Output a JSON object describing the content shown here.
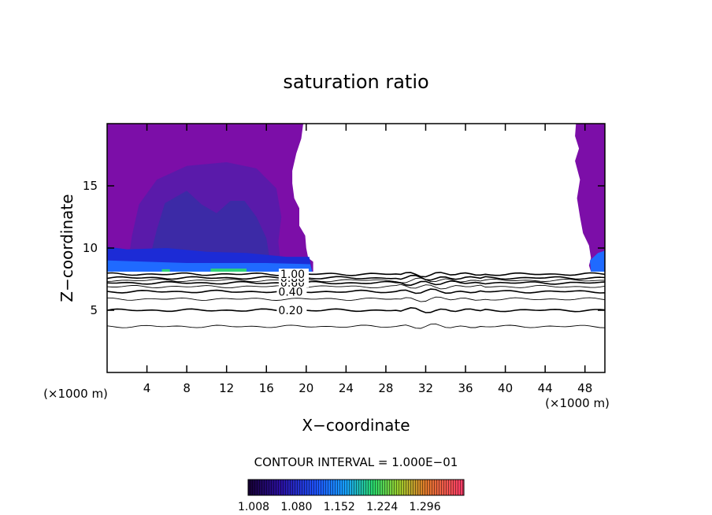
{
  "chart_data": {
    "type": "contour",
    "title": "saturation ratio",
    "xlabel": "X−coordinate",
    "ylabel": "Z−coordinate",
    "x_unit_left": "(×1000 m)",
    "x_unit_right": "(×1000 m)",
    "xlim": [
      0,
      50
    ],
    "ylim": [
      0,
      20
    ],
    "x_ticks": [
      4,
      8,
      12,
      16,
      20,
      24,
      28,
      32,
      36,
      40,
      44,
      48
    ],
    "y_ticks": [
      5,
      10,
      15
    ],
    "contour_interval_text": "CONTOUR INTERVAL = 1.000E−01",
    "colorbar_labels": [
      "1.008",
      "1.080",
      "1.152",
      "1.224",
      "1.296"
    ],
    "colorbar_range": [
      1.008,
      1.32
    ],
    "contour_lines": [
      {
        "level": 0.2,
        "label": "0.20",
        "z": 5.0,
        "bold": true
      },
      {
        "level": 0.3,
        "label": "",
        "z": 5.9,
        "bold": false
      },
      {
        "level": 0.4,
        "label": "0.40",
        "z": 6.5,
        "bold": true
      },
      {
        "level": 0.5,
        "label": "",
        "z": 6.9,
        "bold": false
      },
      {
        "level": 0.6,
        "label": "0.60",
        "z": 7.2,
        "bold": true
      },
      {
        "level": 0.7,
        "label": "",
        "z": 7.4,
        "bold": false
      },
      {
        "level": 0.8,
        "label": "0.80",
        "z": 7.6,
        "bold": true
      },
      {
        "level": 1.0,
        "label": "1.00",
        "z": 7.9,
        "bold": true
      },
      {
        "level": 0.1,
        "label": "",
        "z": 3.7,
        "bold": false
      }
    ],
    "shaded_regions_colors": {
      "outer": "#7c0ea8",
      "mid": "#5a1aaa",
      "inner": "#3c2aa6",
      "band_dark": "#1c2bd6",
      "band_bright": "#1f6aff",
      "green": "#2fd27a"
    },
    "grid": false
  }
}
